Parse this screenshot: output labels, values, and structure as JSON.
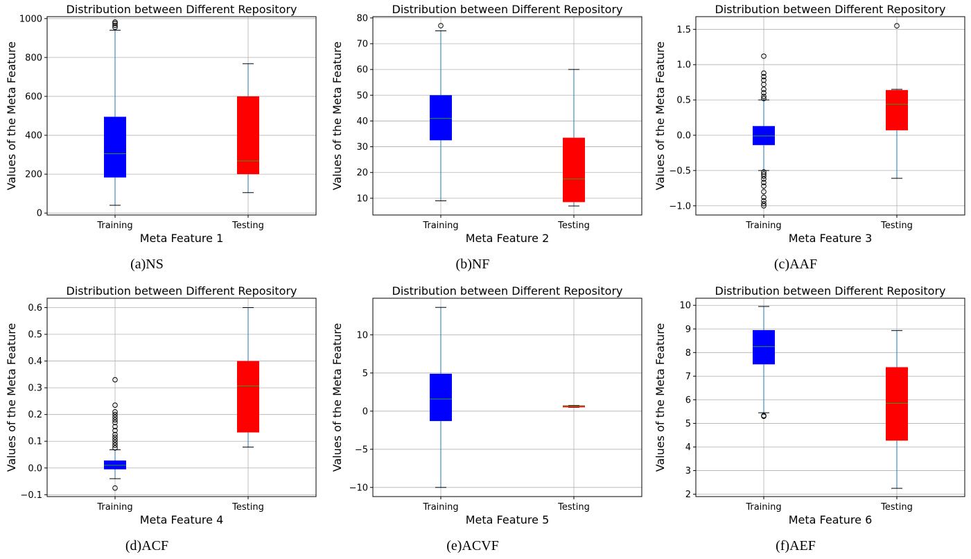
{
  "colors": {
    "training_box": "#0000ff",
    "testing_box": "#ff0000",
    "whisker": "#1f77b4",
    "median": "#2ca02c",
    "grid": "#b0b0b0"
  },
  "chart_data": [
    {
      "type": "box",
      "title": "Distribution between Different Repository",
      "xlabel": "Meta Feature 1",
      "ylabel": "Values of the Meta Feature",
      "caption": "(a)NS",
      "ylim": [
        -10,
        1010
      ],
      "yticks": [
        0,
        200,
        400,
        600,
        800,
        1000
      ],
      "yticklabels": [
        "0",
        "200",
        "400",
        "600",
        "800",
        "1000"
      ],
      "categories": [
        "Training",
        "Testing"
      ],
      "boxes": [
        {
          "name": "Training",
          "whislo": 40,
          "q1": 183,
          "med": 305,
          "q3": 495,
          "whishi": 940,
          "fliers": [
            955,
            965,
            975,
            982
          ]
        },
        {
          "name": "Testing",
          "whislo": 105,
          "q1": 200,
          "med": 268,
          "q3": 600,
          "whishi": 768,
          "fliers": []
        }
      ],
      "grid": true
    },
    {
      "type": "box",
      "title": "Distribution between Different Repository",
      "xlabel": "Meta Feature 2",
      "ylabel": "Values of the Meta Feature",
      "caption": "(b)NF",
      "ylim": [
        3.5,
        80.5
      ],
      "yticks": [
        10,
        20,
        30,
        40,
        50,
        60,
        70,
        80
      ],
      "yticklabels": [
        "10",
        "20",
        "30",
        "40",
        "50",
        "60",
        "70",
        "80"
      ],
      "categories": [
        "Training",
        "Testing"
      ],
      "boxes": [
        {
          "name": "Training",
          "whislo": 9,
          "q1": 32.5,
          "med": 41,
          "q3": 50,
          "whishi": 75,
          "fliers": [
            77
          ]
        },
        {
          "name": "Testing",
          "whislo": 7,
          "q1": 8.5,
          "med": 17.5,
          "q3": 33.5,
          "whishi": 60,
          "fliers": []
        }
      ],
      "grid": true
    },
    {
      "type": "box",
      "title": "Distribution between Different Repository",
      "xlabel": "Meta Feature 3",
      "ylabel": "Values of the Meta Feature",
      "caption": "(c)AAF",
      "ylim": [
        -1.13,
        1.68
      ],
      "yticks": [
        -1.0,
        -0.5,
        0.0,
        0.5,
        1.0,
        1.5
      ],
      "yticklabels": [
        "−1.0",
        "−0.5",
        "0.0",
        "0.5",
        "1.0",
        "1.5"
      ],
      "categories": [
        "Training",
        "Testing"
      ],
      "boxes": [
        {
          "name": "Training",
          "whislo": -0.5,
          "q1": -0.14,
          "med": -0.01,
          "q3": 0.13,
          "whishi": 0.5,
          "fliers": [
            0.52,
            0.55,
            0.6,
            0.65,
            0.72,
            0.78,
            0.83,
            0.88,
            1.12,
            -0.52,
            -0.55,
            -0.58,
            -0.62,
            -0.67,
            -0.72,
            -0.8,
            -0.88,
            -0.93,
            -0.97,
            -1.0
          ]
        },
        {
          "name": "Testing",
          "whislo": -0.61,
          "q1": 0.07,
          "med": 0.44,
          "q3": 0.64,
          "whishi": 0.65,
          "fliers": [
            1.55
          ]
        }
      ],
      "grid": true
    },
    {
      "type": "box",
      "title": "Distribution between Different Repository",
      "xlabel": "Meta Feature 4",
      "ylabel": "Values of the Meta Feature",
      "caption": "(d)ACF",
      "ylim": [
        -0.107,
        0.635
      ],
      "yticks": [
        -0.1,
        0.0,
        0.1,
        0.2,
        0.3,
        0.4,
        0.5,
        0.6
      ],
      "yticklabels": [
        "−0.1",
        "0.0",
        "0.1",
        "0.2",
        "0.3",
        "0.4",
        "0.5",
        "0.6"
      ],
      "categories": [
        "Training",
        "Testing"
      ],
      "boxes": [
        {
          "name": "Training",
          "whislo": -0.04,
          "q1": -0.005,
          "med": 0.01,
          "q3": 0.028,
          "whishi": 0.068,
          "fliers": [
            0.075,
            0.085,
            0.095,
            0.105,
            0.115,
            0.125,
            0.14,
            0.155,
            0.17,
            0.18,
            0.19,
            0.2,
            0.21,
            0.235,
            0.33,
            -0.075
          ]
        },
        {
          "name": "Testing",
          "whislo": 0.078,
          "q1": 0.133,
          "med": 0.307,
          "q3": 0.4,
          "whishi": 0.6,
          "fliers": []
        }
      ],
      "grid": true
    },
    {
      "type": "box",
      "title": "Distribution between Different Repository",
      "xlabel": "Meta Feature 5",
      "ylabel": "Values of the Meta Feature",
      "caption": "(e)ACVF",
      "ylim": [
        -11.2,
        14.8
      ],
      "yticks": [
        -10,
        -5,
        0,
        5,
        10
      ],
      "yticklabels": [
        "−10",
        "−5",
        "0",
        "5",
        "10"
      ],
      "categories": [
        "Training",
        "Testing"
      ],
      "boxes": [
        {
          "name": "Training",
          "whislo": -10,
          "q1": -1.3,
          "med": 1.6,
          "q3": 4.9,
          "whishi": 13.6,
          "fliers": []
        },
        {
          "name": "Testing",
          "whislo": 0.5,
          "q1": 0.5,
          "med": 0.65,
          "q3": 0.75,
          "whishi": 0.75,
          "fliers": []
        }
      ],
      "grid": true
    },
    {
      "type": "box",
      "title": "Distribution between Different Repository",
      "xlabel": "Meta Feature 6",
      "ylabel": "Values of the Meta Feature",
      "caption": "(f)AEF",
      "ylim": [
        1.9,
        10.3
      ],
      "yticks": [
        2,
        3,
        4,
        5,
        6,
        7,
        8,
        9,
        10
      ],
      "yticklabels": [
        "2",
        "3",
        "4",
        "5",
        "6",
        "7",
        "8",
        "9",
        "10"
      ],
      "categories": [
        "Training",
        "Testing"
      ],
      "boxes": [
        {
          "name": "Training",
          "whislo": 5.45,
          "q1": 7.5,
          "med": 8.25,
          "q3": 8.95,
          "whishi": 9.95,
          "fliers": [
            5.3,
            5.33
          ]
        },
        {
          "name": "Testing",
          "whislo": 2.25,
          "q1": 4.27,
          "med": 5.85,
          "q3": 7.38,
          "whishi": 8.93,
          "fliers": []
        }
      ],
      "grid": true
    }
  ]
}
